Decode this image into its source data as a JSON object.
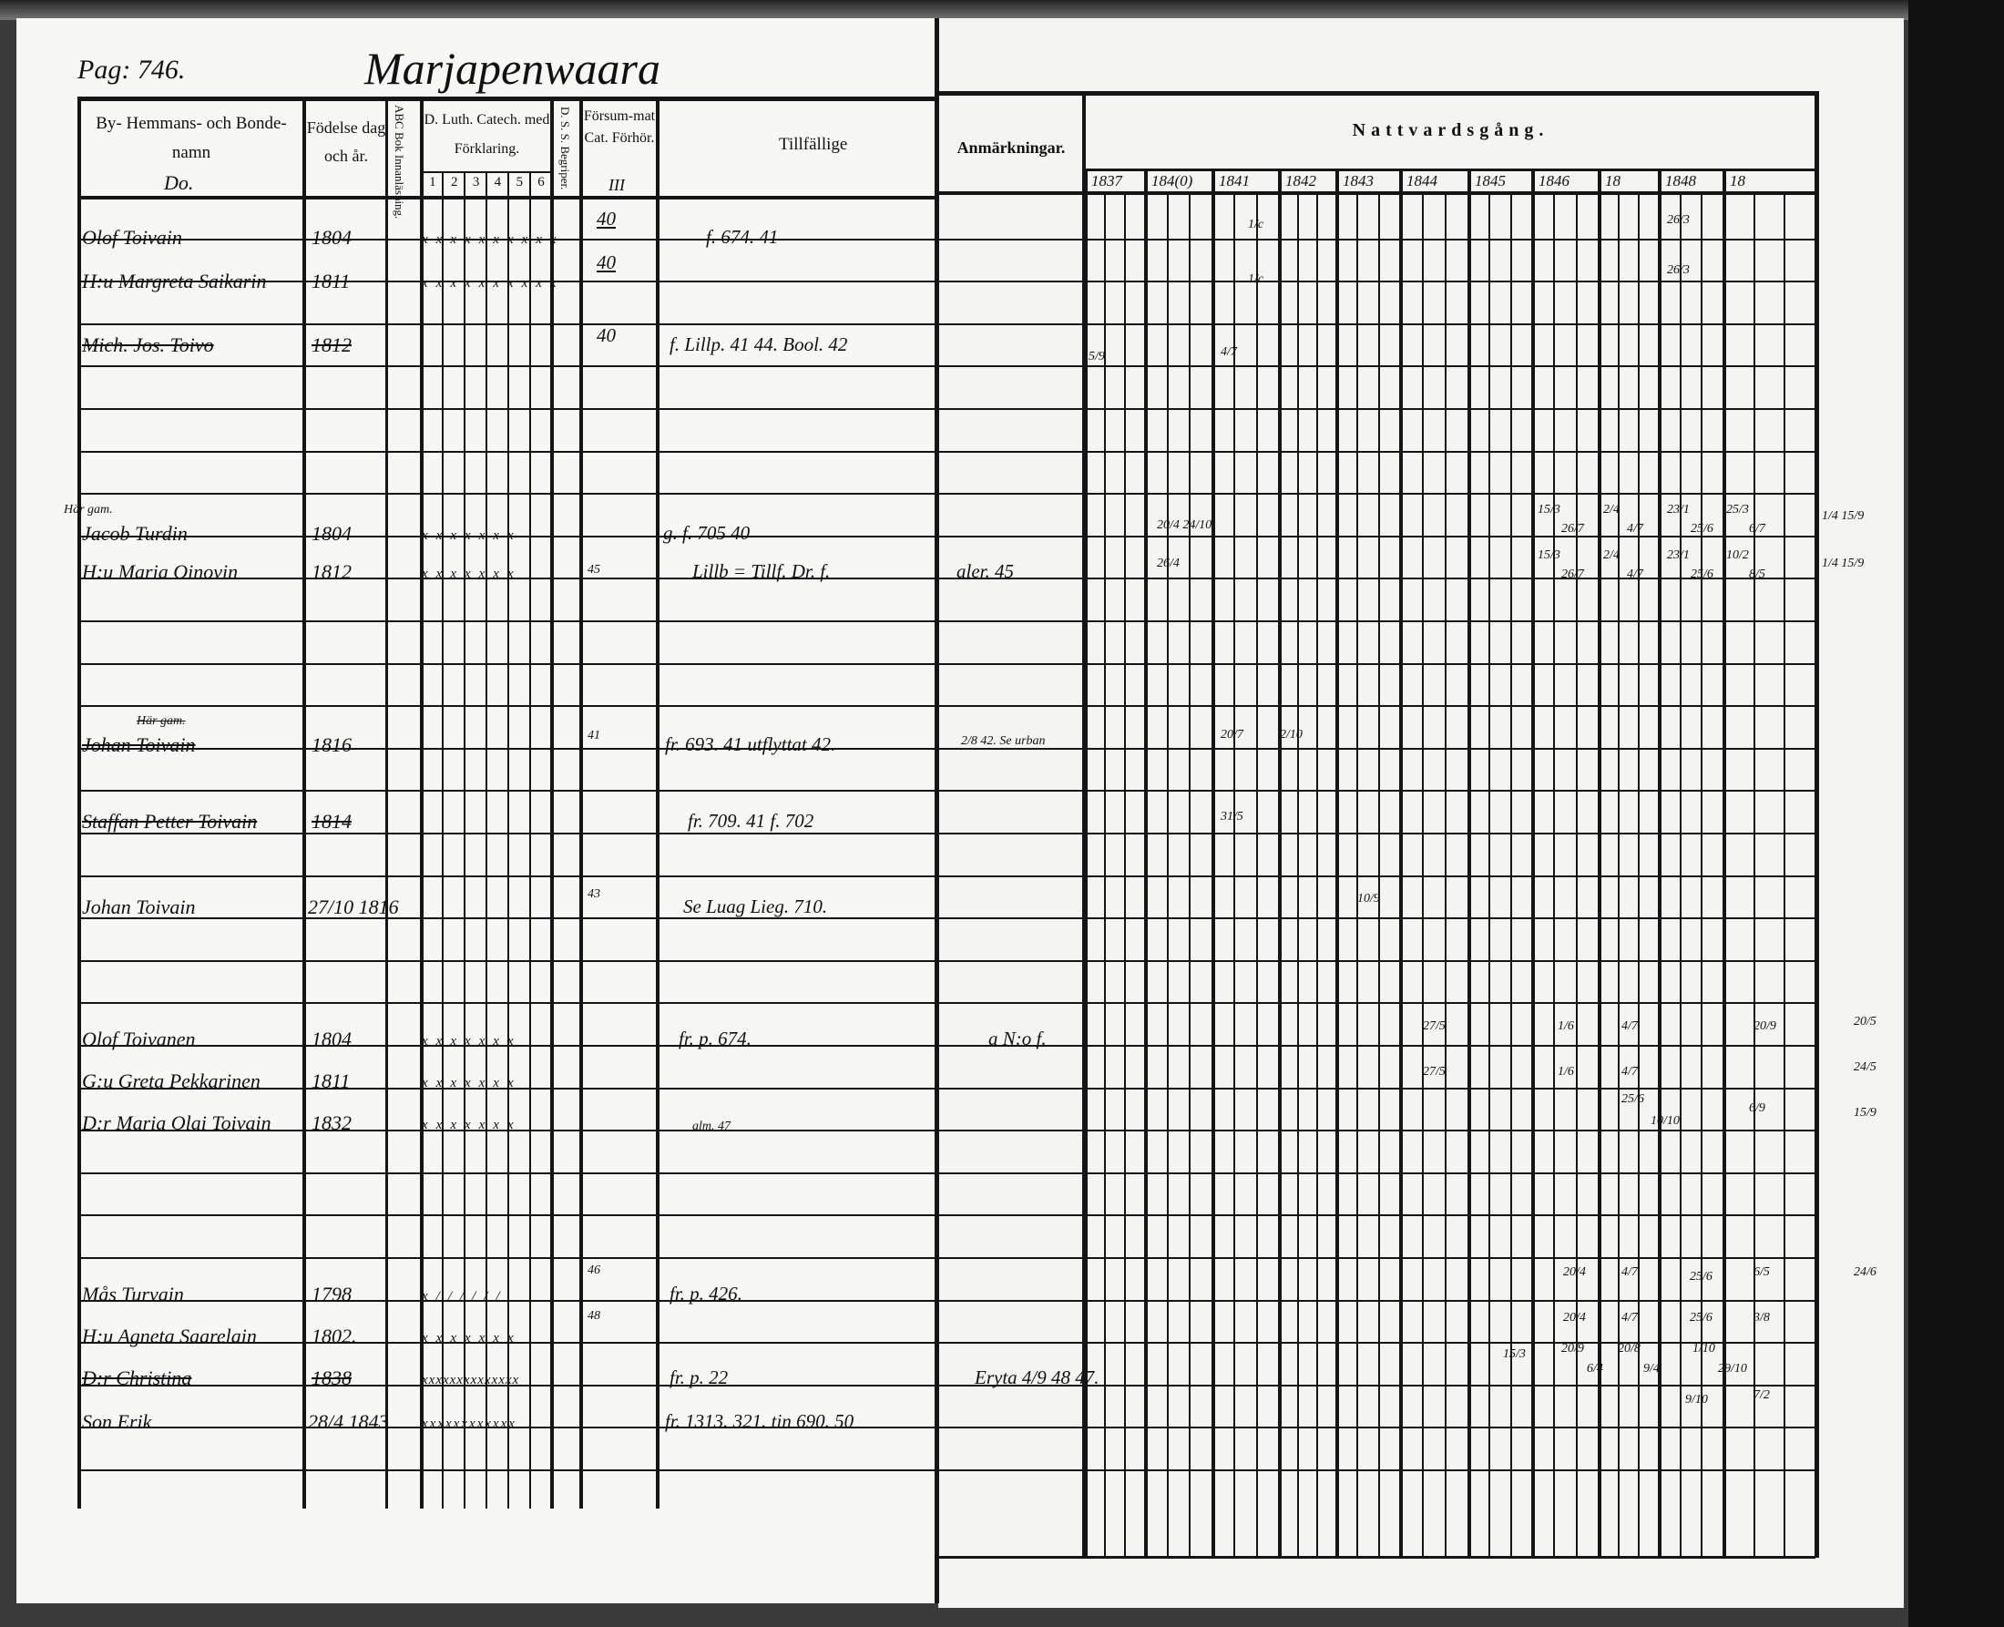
{
  "page_number": "Pag: 746.",
  "village": "Marjapenwaara",
  "headers": {
    "name": "By- Hemmans- och Bonde-namn",
    "name_note": "Do.",
    "birth": "Födelse dag och år.",
    "abc": "ABC Bok Innanläsning.",
    "catechism": "D. Luth. Catech. med Förklaring.",
    "catechism_cols": [
      "1",
      "2",
      "3",
      "4",
      "5",
      "6"
    ],
    "dss": "D. S. S. Begriper.",
    "neglected": "Försum-mat Cat. Förhör.",
    "neglected_note": "III",
    "tillfallige": "Tillfällige",
    "anmarkningar": "Anmärkningar.",
    "nattvard": "Nattvardsgång.",
    "years": [
      "1837",
      "184(0)",
      "1841",
      "1842",
      "1843",
      "1844",
      "1845",
      "1846",
      "18",
      "1848",
      "18"
    ]
  },
  "entries": [
    {
      "prefix": "",
      "name": "Olof Toivain",
      "born": "1804",
      "marks": "xxxxxxxxxx",
      "neglected": "40",
      "tillf": "f. 674. 41",
      "anm": "",
      "struck": false
    },
    {
      "prefix": "",
      "name": "H:u Margreta Saikarin",
      "born": "1811",
      "marks": "xxxxxxxxxx",
      "neglected": "40",
      "tillf": "",
      "anm": "",
      "struck": false
    },
    {
      "prefix": "",
      "name": "Mich. Jos. Toivo",
      "born": "1812",
      "marks": "",
      "neglected": "40",
      "tillf": "f. Lillp. 41 44. Bool. 42",
      "anm": "",
      "struck": true
    },
    {
      "prefix": "Här gam.",
      "name": "Jacob Turdin",
      "born": "1804",
      "marks": "xxxxxxx",
      "neglected": "",
      "tillf": "g. f. 705 40",
      "anm": "",
      "struck": false
    },
    {
      "prefix": "",
      "name": "H:u Maria Oinovin",
      "born": "1812",
      "marks": "xxxxxxx",
      "neglected": "45",
      "tillf": "Lillb = Tillf. Dr. f.",
      "anm": "aler. 45",
      "struck": false
    },
    {
      "prefix": "Här gam.",
      "name": "Johan Toivain",
      "born": "1816",
      "marks": "",
      "neglected": "41",
      "tillf": "fr. 693. 41 utflyttat 42.",
      "anm": "2/8 42. Se urban",
      "struck": true
    },
    {
      "prefix": "",
      "name": "Staffan Petter Toivain",
      "born": "1814",
      "marks": "",
      "neglected": "",
      "tillf": "fr. 709. 41 f. 702",
      "anm": "",
      "struck": true
    },
    {
      "prefix": "",
      "name": "Johan Toivain",
      "born": "27/10 1816",
      "marks": "",
      "neglected": "43",
      "tillf": "Se Luag  Lieg. 710.",
      "anm": "",
      "struck": false
    },
    {
      "prefix": "",
      "name": "Olof Toivanen",
      "born": "1804",
      "marks": "xxxxxxx",
      "neglected": "",
      "tillf": "fr. p. 674.",
      "anm": "a N:o f.",
      "struck": false
    },
    {
      "prefix": "",
      "name": "G:u Greta Pekkarinen",
      "born": "1811",
      "marks": "xxxxxxx",
      "neglected": "",
      "tillf": "",
      "anm": "",
      "struck": false
    },
    {
      "prefix": "",
      "name": "D:r Maria Olai Toivain",
      "born": "1832",
      "marks": "xxxxxxx",
      "neglected": "",
      "tillf": "alm. 47",
      "anm": "",
      "struck": false
    },
    {
      "prefix": "",
      "name": "Mås Turvain",
      "born": "1798",
      "marks": "x//////",
      "neglected": "46",
      "tillf": "fr. p. 426.",
      "anm": "",
      "struck": false
    },
    {
      "prefix": "",
      "name": "H:u Agneta Saarelain",
      "born": "1802.",
      "marks": "xxxxxxx",
      "neglected": "48",
      "tillf": "",
      "anm": "",
      "struck": false
    },
    {
      "prefix": "",
      "name": "D:r Christina",
      "born": "1838",
      "marks": "xxxxxxxxxxxxxx",
      "neglected": "",
      "tillf": "fr. p. 22",
      "anm": "Eryta 4/9 48  47.",
      "struck": true
    },
    {
      "prefix": "",
      "name": "Son Erik",
      "born": "28/4 1843",
      "marks": "xxxxxxxxxxxx",
      "neglected": "",
      "tillf": "fr. 1313. 321. tin 690. 50",
      "anm": "",
      "struck": false
    }
  ],
  "communion_marks": [
    "1/c",
    "1/c",
    "26/3",
    "26/3",
    "5/9",
    "4/7",
    "20/4 24/10",
    "15/3",
    "26/7",
    "2/4",
    "4/7",
    "23/1",
    "25/6",
    "25/3",
    "6/7",
    "1/4 15/9",
    "26/4",
    "15/3",
    "26/7",
    "2/4",
    "4/7",
    "23/1",
    "25/6",
    "10/2",
    "8/5",
    "1/4 15/9",
    "20/7",
    "2/10",
    "31/5",
    "10/9",
    "27/5",
    "1/6",
    "4/7",
    "20/9",
    "20/5",
    "27/5",
    "1/6",
    "4/7",
    "24/5",
    "25/6",
    "10/10",
    "6/9",
    "15/9",
    "20/4",
    "4/7",
    "25/6",
    "6/5",
    "24/6",
    "20/4",
    "4/7",
    "25/6",
    "3/8",
    "15/3",
    "20/9",
    "6/4",
    "20/8",
    "9/4",
    "1/10",
    "29/10",
    "9/10",
    "7/2"
  ]
}
